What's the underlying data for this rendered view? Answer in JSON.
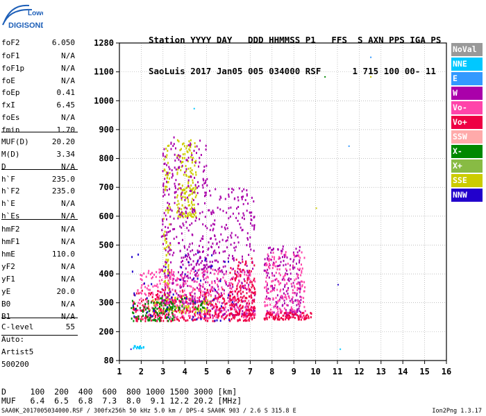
{
  "logo": {
    "line1": "Lowell",
    "line2": "DIGISONDE"
  },
  "header": {
    "line1": "Station YYYY DAY   DDD HHMMSS P1   FFS  S AXN PPS IGA PS",
    "line2": "SaoLuis 2017 Jan05 005 034000 RSF      1 715 100 00- 11"
  },
  "params": [
    {
      "name": "foF2",
      "value": "6.050"
    },
    {
      "name": "foF1",
      "value": "N/A"
    },
    {
      "name": "foF1p",
      "value": "N/A"
    },
    {
      "name": "foE",
      "value": "N/A"
    },
    {
      "name": "foEp",
      "value": "0.41"
    },
    {
      "name": "fxI",
      "value": "6.45"
    },
    {
      "name": "foEs",
      "value": "N/A"
    },
    {
      "name": "fmin",
      "value": "1.70"
    },
    {
      "name": "MUF(D)",
      "value": "20.20"
    },
    {
      "name": "M(D)",
      "value": "3.34"
    },
    {
      "name": "D",
      "value": "N/A"
    },
    {
      "name": "h`F",
      "value": "235.0"
    },
    {
      "name": "h`F2",
      "value": "235.0"
    },
    {
      "name": "h`E",
      "value": "N/A"
    },
    {
      "name": "h`Es",
      "value": "N/A"
    },
    {
      "name": "hmF2",
      "value": "N/A"
    },
    {
      "name": "hmF1",
      "value": "N/A"
    },
    {
      "name": "hmE",
      "value": "110.0"
    },
    {
      "name": "yF2",
      "value": "N/A"
    },
    {
      "name": "yF1",
      "value": "N/A"
    },
    {
      "name": "yE",
      "value": "20.0"
    },
    {
      "name": "B0",
      "value": "N/A"
    },
    {
      "name": "B1",
      "value": "N/A"
    },
    {
      "name": "C-level",
      "value": "55"
    }
  ],
  "auto": {
    "line1": "Auto:",
    "line2": "Artist5",
    "line3": "500200"
  },
  "legend": [
    {
      "label": "NoVal",
      "color": "#999999"
    },
    {
      "label": "NNE",
      "color": "#00c8ff"
    },
    {
      "label": "E",
      "color": "#3399ff"
    },
    {
      "label": "W",
      "color": "#aa00aa"
    },
    {
      "label": "Vo-",
      "color": "#ff44aa"
    },
    {
      "label": "Vo+",
      "color": "#ee0044"
    },
    {
      "label": "SSW",
      "color": "#ffaaaa"
    },
    {
      "label": "X-",
      "color": "#008800"
    },
    {
      "label": "X+",
      "color": "#88bb44"
    },
    {
      "label": "SSE",
      "color": "#cccc00"
    },
    {
      "label": "NNW",
      "color": "#2200cc"
    }
  ],
  "footer": {
    "d_line": "D     100  200  400  600  800 1000 1500 3000 [km]",
    "muf_line": "MUF   6.4  6.5  6.8  7.3  8.0  9.1 12.2 20.2 [MHz]",
    "file_line": "SAA0K_2017005034000.RSF / 300fx256h 50 kHz 5.0 km / DPS-4 SAA0K 903 / 2.6 S 315.8 E",
    "version": "Ion2Png 1.3.17"
  },
  "chart_data": {
    "type": "scatter",
    "xlabel": "",
    "ylabel": "",
    "xlim": [
      1,
      16
    ],
    "ylim": [
      80,
      1280
    ],
    "x_ticks": [
      1,
      2,
      3,
      4,
      5,
      6,
      7,
      8,
      9,
      10,
      11,
      12,
      13,
      14,
      15,
      16
    ],
    "y_ticks": [
      80,
      200,
      300,
      400,
      500,
      600,
      700,
      800,
      900,
      1000,
      1100,
      1280
    ],
    "grid": true,
    "series": [
      {
        "name": "SSE",
        "color": "#cccc00",
        "clusters": [
          {
            "fmin": 3.0,
            "fmax": 3.3,
            "hmin": 300,
            "hmax": 850,
            "n": 90
          },
          {
            "fmin": 3.6,
            "fmax": 4.5,
            "hmin": 600,
            "hmax": 870,
            "n": 160
          },
          {
            "fmin": 2.3,
            "fmax": 5.2,
            "hmin": 270,
            "hmax": 330,
            "n": 120
          }
        ]
      },
      {
        "name": "W",
        "color": "#aa00aa",
        "clusters": [
          {
            "fmin": 2.9,
            "fmax": 5.0,
            "hmin": 300,
            "hmax": 880,
            "n": 420
          },
          {
            "fmin": 5.0,
            "fmax": 7.2,
            "hmin": 260,
            "hmax": 700,
            "n": 300
          },
          {
            "fmin": 7.6,
            "fmax": 9.3,
            "hmin": 260,
            "hmax": 500,
            "n": 180
          }
        ]
      },
      {
        "name": "Vo-",
        "color": "#ff44aa",
        "clusters": [
          {
            "fmin": 1.8,
            "fmax": 7.2,
            "hmin": 250,
            "hmax": 420,
            "n": 450
          },
          {
            "fmin": 7.6,
            "fmax": 9.5,
            "hmin": 250,
            "hmax": 480,
            "n": 200
          }
        ]
      },
      {
        "name": "Vo+",
        "color": "#ee0044",
        "clusters": [
          {
            "fmin": 1.6,
            "fmax": 7.2,
            "hmin": 240,
            "hmax": 350,
            "n": 300
          },
          {
            "fmin": 6.0,
            "fmax": 7.2,
            "hmin": 260,
            "hmax": 460,
            "n": 120
          },
          {
            "fmin": 7.6,
            "fmax": 9.8,
            "hmin": 245,
            "hmax": 270,
            "n": 90
          }
        ]
      },
      {
        "name": "X-",
        "color": "#008800",
        "clusters": [
          {
            "fmin": 1.5,
            "fmax": 3.5,
            "hmin": 240,
            "hmax": 310,
            "n": 80
          },
          {
            "fmin": 2.8,
            "fmax": 5.0,
            "hmin": 280,
            "hmax": 320,
            "n": 40
          }
        ]
      },
      {
        "name": "NNW",
        "color": "#2200cc",
        "clusters": [
          {
            "fmin": 1.5,
            "fmax": 6.5,
            "hmin": 240,
            "hmax": 480,
            "n": 60
          }
        ]
      },
      {
        "name": "NNE",
        "color": "#00c8ff",
        "clusters": [
          {
            "fmin": 1.6,
            "fmax": 2.1,
            "hmin": 135,
            "hmax": 145,
            "n": 14
          }
        ]
      }
    ],
    "outliers": [
      {
        "x": 12.5,
        "y": 1195,
        "color": "#3399ff"
      },
      {
        "x": 10.4,
        "y": 1085,
        "color": "#008800"
      },
      {
        "x": 12.5,
        "y": 1085,
        "color": "#cccc00"
      },
      {
        "x": 4.4,
        "y": 975,
        "color": "#00c8ff"
      },
      {
        "x": 10.0,
        "y": 630,
        "color": "#cccc00"
      },
      {
        "x": 11.0,
        "y": 365,
        "color": "#2200cc"
      },
      {
        "x": 11.1,
        "y": 130,
        "color": "#00c8ff"
      },
      {
        "x": 11.5,
        "y": 845,
        "color": "#3399ff"
      },
      {
        "x": 1.5,
        "y": 130,
        "color": "#2200cc"
      }
    ]
  }
}
